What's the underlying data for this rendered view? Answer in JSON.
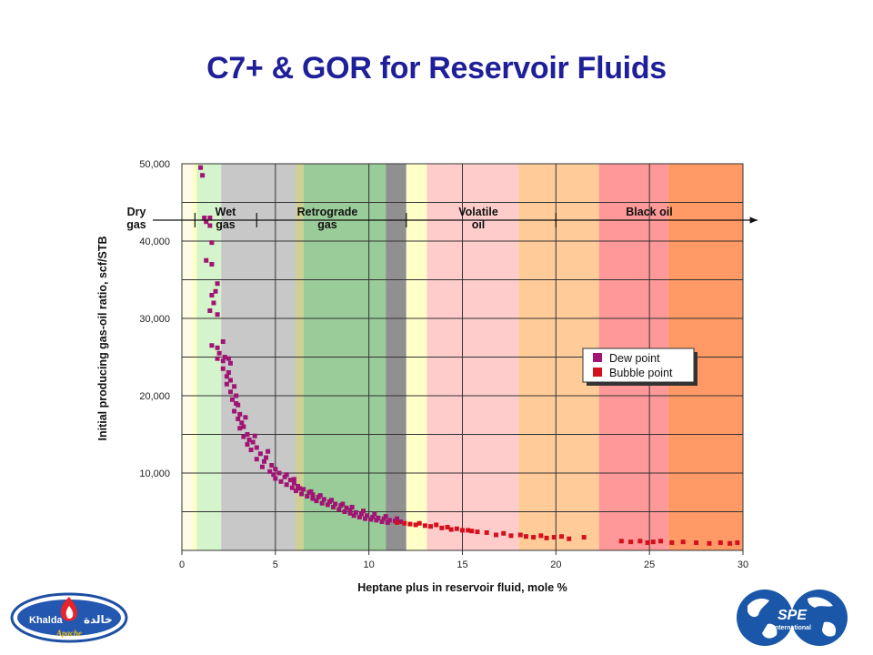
{
  "slide": {
    "title": "C7+ & GOR for Reservoir Fluids"
  },
  "logos": {
    "khalda": {
      "text_latin": "Khalda",
      "text_arabic": "خالدة",
      "sub": "Apache"
    },
    "spe": {
      "text": "SPE",
      "sub": "International"
    }
  },
  "chart_data": {
    "type": "scatter",
    "xlabel": "Heptane plus in reservoir fluid, mole %",
    "ylabel": "Initial producing gas-oil ratio, scf/STB",
    "xlim": [
      0,
      30
    ],
    "ylim": [
      0,
      50000
    ],
    "xticks": [
      "0",
      "5",
      "10",
      "15",
      "20",
      "25",
      "30"
    ],
    "yticks": [
      "10,000",
      "20,000",
      "30,000",
      "40,000",
      "50,000"
    ],
    "grid": true,
    "legend_position": "right",
    "legend": [
      {
        "name": "Dew point",
        "color": "#a01473"
      },
      {
        "name": "Bubble point",
        "color": "#d4101c"
      }
    ],
    "regions": [
      {
        "label_lines": [
          "Dry",
          "gas"
        ],
        "from": 0,
        "to": 0.7
      },
      {
        "label_lines": [
          "Wet",
          "gas"
        ],
        "from": 0.7,
        "to": 4
      },
      {
        "label_lines": [
          "Retrograde",
          "gas"
        ],
        "from": 4,
        "to": 12
      },
      {
        "label_lines": [
          "Volatile",
          "oil"
        ],
        "from": 12,
        "to": 20
      },
      {
        "label_lines": [
          "Black oil"
        ],
        "from": 20,
        "to": 30
      }
    ],
    "bands": [
      {
        "from": 0,
        "to": 0.6,
        "color": "#fffbe6"
      },
      {
        "from": 0.6,
        "to": 0.8,
        "color": "#ffffc0"
      },
      {
        "from": 0.8,
        "to": 2.1,
        "color": "#d4f5cc"
      },
      {
        "from": 2.1,
        "to": 6.1,
        "color": "#c8c8c8"
      },
      {
        "from": 6.1,
        "to": 6.5,
        "color": "#d0d090"
      },
      {
        "from": 6.5,
        "to": 10.9,
        "color": "#99cc99"
      },
      {
        "from": 10.9,
        "to": 12.0,
        "color": "#909090"
      },
      {
        "from": 12.0,
        "to": 13.1,
        "color": "#ffffc8"
      },
      {
        "from": 13.1,
        "to": 18.0,
        "color": "#ffcccc"
      },
      {
        "from": 18.0,
        "to": 22.3,
        "color": "#ffcc99"
      },
      {
        "from": 22.3,
        "to": 26.0,
        "color": "#ff9999"
      },
      {
        "from": 26.0,
        "to": 30.0,
        "color": "#ff9966"
      }
    ],
    "series": [
      {
        "name": "Dew point",
        "color": "#a01473",
        "points": [
          [
            1.0,
            49500
          ],
          [
            1.1,
            48500
          ],
          [
            1.2,
            43000
          ],
          [
            1.3,
            42500
          ],
          [
            1.5,
            43000
          ],
          [
            1.5,
            42000
          ],
          [
            1.6,
            39800
          ],
          [
            1.3,
            37500
          ],
          [
            1.6,
            37000
          ],
          [
            1.9,
            34500
          ],
          [
            1.8,
            33500
          ],
          [
            1.6,
            33000
          ],
          [
            1.7,
            32000
          ],
          [
            1.5,
            31000
          ],
          [
            1.9,
            30500
          ],
          [
            1.6,
            26500
          ],
          [
            1.9,
            26200
          ],
          [
            2.2,
            27000
          ],
          [
            2.0,
            25500
          ],
          [
            2.3,
            25000
          ],
          [
            1.9,
            24800
          ],
          [
            2.2,
            24500
          ],
          [
            2.5,
            24800
          ],
          [
            2.6,
            24200
          ],
          [
            2.2,
            23500
          ],
          [
            2.5,
            23000
          ],
          [
            2.4,
            22500
          ],
          [
            2.6,
            22000
          ],
          [
            2.4,
            21500
          ],
          [
            2.8,
            21200
          ],
          [
            2.6,
            20500
          ],
          [
            2.9,
            20000
          ],
          [
            2.7,
            19500
          ],
          [
            3.0,
            18800
          ],
          [
            2.8,
            18000
          ],
          [
            3.1,
            17600
          ],
          [
            3.0,
            17000
          ],
          [
            3.2,
            16500
          ],
          [
            3.3,
            16000
          ],
          [
            3.1,
            15800
          ],
          [
            3.5,
            15000
          ],
          [
            3.3,
            14700
          ],
          [
            3.6,
            14300
          ],
          [
            3.8,
            14000
          ],
          [
            3.5,
            13700
          ],
          [
            4.0,
            13300
          ],
          [
            3.7,
            13000
          ],
          [
            4.2,
            12500
          ],
          [
            4.5,
            12000
          ],
          [
            4.0,
            11800
          ],
          [
            4.4,
            11500
          ],
          [
            4.8,
            11000
          ],
          [
            4.3,
            10800
          ],
          [
            5.0,
            10500
          ],
          [
            4.7,
            10200
          ],
          [
            5.2,
            10000
          ],
          [
            4.9,
            9800
          ],
          [
            5.5,
            9500
          ],
          [
            5.0,
            9300
          ],
          [
            5.8,
            9100
          ],
          [
            5.3,
            8900
          ],
          [
            6.0,
            8700
          ],
          [
            5.6,
            8500
          ],
          [
            6.2,
            8300
          ],
          [
            5.9,
            8100
          ],
          [
            6.5,
            7900
          ],
          [
            6.1,
            7700
          ],
          [
            6.8,
            7500
          ],
          [
            6.4,
            7300
          ],
          [
            7.0,
            7200
          ],
          [
            6.7,
            7000
          ],
          [
            7.3,
            6900
          ],
          [
            7.0,
            6700
          ],
          [
            7.6,
            6600
          ],
          [
            7.2,
            6400
          ],
          [
            7.9,
            6300
          ],
          [
            7.5,
            6100
          ],
          [
            8.2,
            6000
          ],
          [
            7.8,
            5900
          ],
          [
            8.5,
            5800
          ],
          [
            8.1,
            5600
          ],
          [
            8.8,
            5500
          ],
          [
            8.4,
            5300
          ],
          [
            9.0,
            5200
          ],
          [
            8.7,
            5000
          ],
          [
            9.3,
            4900
          ],
          [
            9.0,
            4800
          ],
          [
            9.6,
            4700
          ],
          [
            9.2,
            4500
          ],
          [
            9.9,
            4500
          ],
          [
            9.5,
            4300
          ],
          [
            10.2,
            4300
          ],
          [
            9.8,
            4100
          ],
          [
            10.5,
            4200
          ],
          [
            10.1,
            4000
          ],
          [
            10.8,
            4100
          ],
          [
            10.4,
            3900
          ],
          [
            11.1,
            3900
          ],
          [
            10.7,
            3700
          ],
          [
            11.4,
            3800
          ],
          [
            11.0,
            3600
          ],
          [
            11.7,
            3700
          ],
          [
            6.3,
            8000
          ],
          [
            6.9,
            7600
          ],
          [
            7.4,
            7100
          ],
          [
            8.0,
            6500
          ],
          [
            8.6,
            6000
          ],
          [
            9.1,
            5600
          ],
          [
            9.7,
            5100
          ],
          [
            10.3,
            4700
          ],
          [
            10.9,
            4400
          ],
          [
            11.5,
            4100
          ],
          [
            5.6,
            9800
          ],
          [
            6.0,
            9200
          ],
          [
            4.6,
            12800
          ],
          [
            3.9,
            14800
          ],
          [
            3.4,
            17200
          ],
          [
            2.9,
            19000
          ]
        ]
      },
      {
        "name": "Bubble point",
        "color": "#d4101c",
        "points": [
          [
            11.5,
            3600
          ],
          [
            11.9,
            3500
          ],
          [
            12.2,
            3400
          ],
          [
            12.5,
            3300
          ],
          [
            12.7,
            3500
          ],
          [
            13.0,
            3200
          ],
          [
            13.3,
            3100
          ],
          [
            13.6,
            3300
          ],
          [
            13.9,
            2900
          ],
          [
            14.2,
            3000
          ],
          [
            14.4,
            2700
          ],
          [
            14.7,
            2800
          ],
          [
            15.0,
            2600
          ],
          [
            15.3,
            2600
          ],
          [
            15.5,
            2500
          ],
          [
            15.8,
            2400
          ],
          [
            16.3,
            2300
          ],
          [
            16.8,
            2000
          ],
          [
            17.2,
            2200
          ],
          [
            17.6,
            1900
          ],
          [
            18.1,
            2000
          ],
          [
            18.4,
            1800
          ],
          [
            18.8,
            1700
          ],
          [
            19.2,
            1900
          ],
          [
            19.5,
            1600
          ],
          [
            19.9,
            1700
          ],
          [
            20.3,
            1800
          ],
          [
            20.7,
            1500
          ],
          [
            21.5,
            1700
          ],
          [
            23.5,
            1200
          ],
          [
            24.0,
            1100
          ],
          [
            24.5,
            1200
          ],
          [
            25.2,
            1100
          ],
          [
            25.6,
            1200
          ],
          [
            26.2,
            1000
          ],
          [
            26.8,
            1100
          ],
          [
            27.5,
            1000
          ],
          [
            28.2,
            900
          ],
          [
            28.8,
            1000
          ],
          [
            29.3,
            900
          ],
          [
            29.7,
            1000
          ],
          [
            24.9,
            1000
          ]
        ]
      }
    ]
  }
}
